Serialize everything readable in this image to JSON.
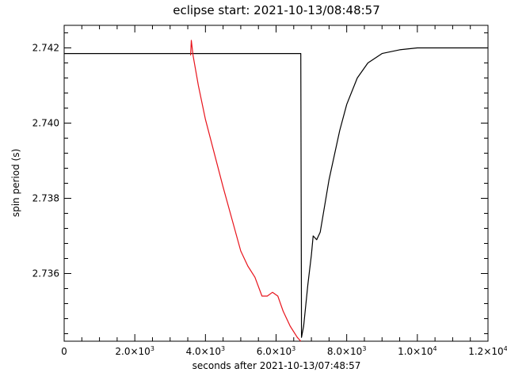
{
  "chart_data": {
    "type": "line",
    "title": "eclipse start: 2021-10-13/08:48:57",
    "xlabel": "seconds after 2021-10-13/07:48:57",
    "ylabel": "spin period (s)",
    "xlim": [
      0,
      12000
    ],
    "ylim": [
      2.7342,
      2.7426
    ],
    "grid": false,
    "x_ticks": [
      {
        "value": 0,
        "label": "0",
        "mantissa": "",
        "exp": ""
      },
      {
        "value": 2000,
        "label": "2.0×10³",
        "mantissa": "2.0×10",
        "exp": "3"
      },
      {
        "value": 4000,
        "label": "4.0×10³",
        "mantissa": "4.0×10",
        "exp": "3"
      },
      {
        "value": 6000,
        "label": "6.0×10³",
        "mantissa": "6.0×10",
        "exp": "3"
      },
      {
        "value": 8000,
        "label": "8.0×10³",
        "mantissa": "8.0×10",
        "exp": "3"
      },
      {
        "value": 10000,
        "label": "1.0×10⁴",
        "mantissa": "1.0×10",
        "exp": "4"
      },
      {
        "value": 12000,
        "label": "1.2×10⁴",
        "mantissa": "1.2×10",
        "exp": "4"
      }
    ],
    "y_ticks": [
      {
        "value": 2.736,
        "label": "2.736"
      },
      {
        "value": 2.738,
        "label": "2.738"
      },
      {
        "value": 2.74,
        "label": "2.740"
      },
      {
        "value": 2.742,
        "label": "2.742"
      }
    ],
    "series": [
      {
        "color": "#000000",
        "points": [
          [
            0,
            2.74185
          ],
          [
            3500,
            2.74185
          ],
          [
            6700,
            2.74185
          ],
          [
            6720,
            2.7343
          ],
          [
            6780,
            2.7346
          ],
          [
            6900,
            2.7357
          ],
          [
            7000,
            2.7365
          ],
          [
            7050,
            2.737
          ],
          [
            7150,
            2.7369
          ],
          [
            7250,
            2.7371
          ],
          [
            7500,
            2.7385
          ],
          [
            7800,
            2.7398
          ],
          [
            8000,
            2.7405
          ],
          [
            8300,
            2.7412
          ],
          [
            8600,
            2.7416
          ],
          [
            9000,
            2.74185
          ],
          [
            9500,
            2.74195
          ],
          [
            10000,
            2.742
          ],
          [
            10500,
            2.742
          ],
          [
            11000,
            2.742
          ],
          [
            12000,
            2.742
          ]
        ]
      },
      {
        "color": "#e8141c",
        "points": [
          [
            3580,
            2.7418
          ],
          [
            3600,
            2.7422
          ],
          [
            3650,
            2.7418
          ],
          [
            3800,
            2.741
          ],
          [
            4000,
            2.7401
          ],
          [
            4500,
            2.7383
          ],
          [
            5000,
            2.7366
          ],
          [
            5200,
            2.7362
          ],
          [
            5400,
            2.7359
          ],
          [
            5600,
            2.7354
          ],
          [
            5750,
            2.7354
          ],
          [
            5900,
            2.7355
          ],
          [
            6050,
            2.7354
          ],
          [
            6200,
            2.735
          ],
          [
            6400,
            2.7346
          ],
          [
            6600,
            2.7343
          ],
          [
            6700,
            2.7342
          ]
        ]
      }
    ]
  }
}
